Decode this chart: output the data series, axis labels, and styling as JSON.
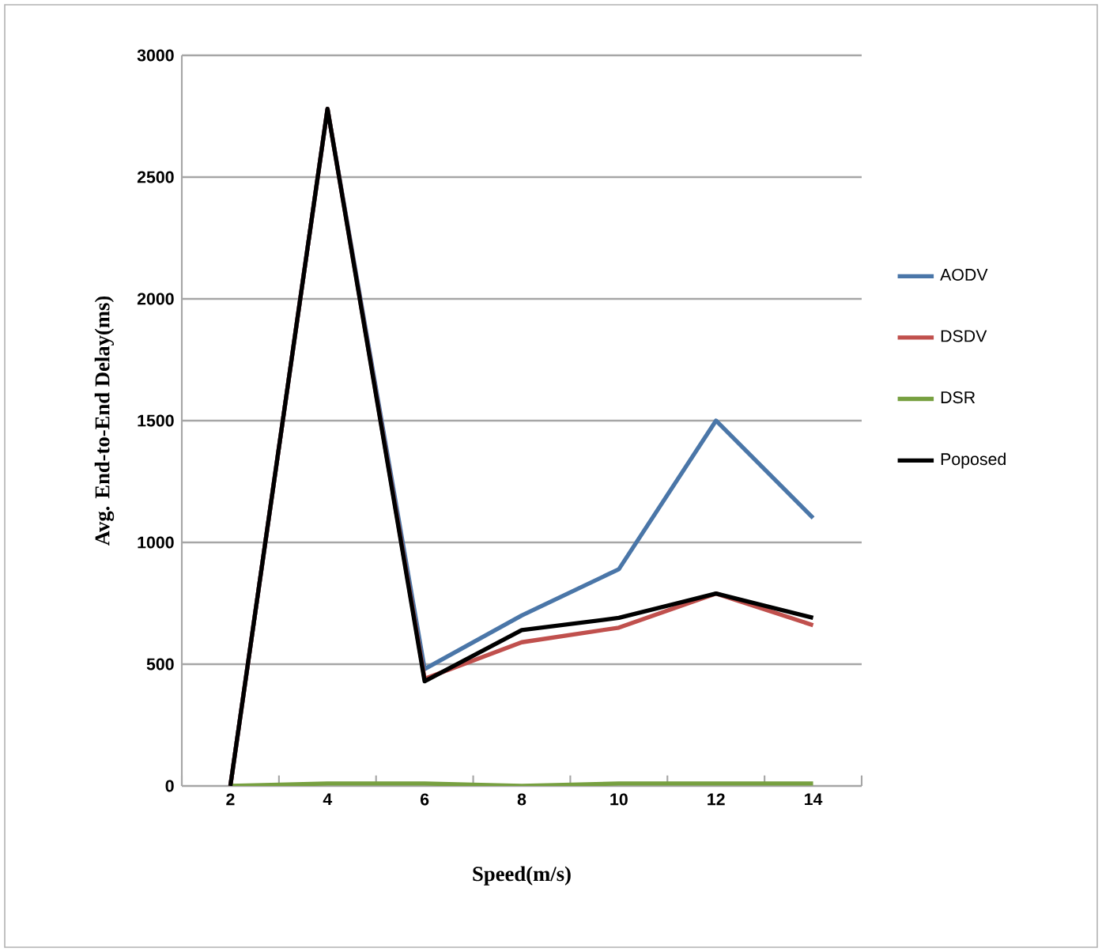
{
  "chart_data": {
    "type": "line",
    "xlabel": "Speed(m/s)",
    "ylabel": "Avg. End-to-End Delay(ms)",
    "categories": [
      "2",
      "4",
      "6",
      "8",
      "10",
      "12",
      "14"
    ],
    "series": [
      {
        "name": "AODV",
        "color": "#4a76a8",
        "values": [
          0,
          2780,
          480,
          700,
          890,
          1500,
          1100
        ]
      },
      {
        "name": "DSDV",
        "color": "#c0504d",
        "values": [
          0,
          2780,
          440,
          590,
          650,
          790,
          660
        ]
      },
      {
        "name": "DSR",
        "color": "#77a040",
        "values": [
          0,
          10,
          10,
          0,
          10,
          10,
          10
        ]
      },
      {
        "name": "Poposed",
        "color": "#000000",
        "values": [
          0,
          2780,
          430,
          640,
          690,
          790,
          690
        ]
      }
    ],
    "ylim": [
      0,
      3000
    ],
    "yticks": [
      0,
      500,
      1000,
      1500,
      2000,
      2500,
      3000
    ],
    "grid": "y",
    "legend": "right",
    "marker": "none",
    "line_style": "solid"
  }
}
